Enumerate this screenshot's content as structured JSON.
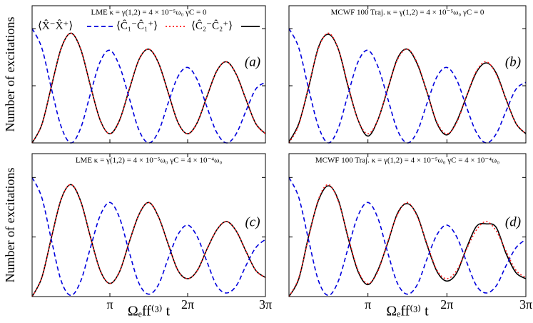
{
  "chart_data": [
    {
      "type": "line",
      "title": "LME κ = γ(1,2) = 4 × 10⁻⁵ω₀  γC = 0",
      "panel_label": "(a)",
      "ylabel": "Number of excitations",
      "legend": true,
      "x": [
        0,
        0.3927,
        0.7854,
        1.1781,
        1.5708,
        1.9635,
        2.3562,
        2.7489,
        3.1416,
        3.5343,
        3.927,
        4.3197,
        4.7124,
        5.1051,
        5.4978,
        5.8905,
        6.2832,
        6.6759,
        7.0686,
        7.4613,
        7.854,
        8.2467,
        8.6394,
        9.0321,
        9.4248
      ],
      "series": [
        {
          "name": "⟨X̂⁻X̂⁺⟩",
          "color": "#0000dd",
          "style": "dashed",
          "values": [
            1,
            0.83,
            0.47,
            0.14,
            0,
            0.13,
            0.43,
            0.71,
            0.81,
            0.67,
            0.39,
            0.11,
            0,
            0.1,
            0.35,
            0.58,
            0.66,
            0.55,
            0.31,
            0.09,
            0,
            0.08,
            0.28,
            0.47,
            0.53
          ]
        },
        {
          "name": "⟨Ĉ₁⁻Ĉ₁⁺⟩",
          "color": "#ff1a1a",
          "style": "dotted",
          "values": [
            0,
            0.16,
            0.5,
            0.83,
            0.96,
            0.82,
            0.5,
            0.2,
            0.08,
            0.2,
            0.47,
            0.73,
            0.82,
            0.7,
            0.44,
            0.18,
            0.08,
            0.18,
            0.41,
            0.63,
            0.71,
            0.6,
            0.38,
            0.17,
            0.08
          ]
        },
        {
          "name": "⟨Ĉ₂⁻Ĉ₂⁺⟩",
          "color": "#000000",
          "style": "solid",
          "values": [
            0,
            0.16,
            0.5,
            0.83,
            0.96,
            0.82,
            0.5,
            0.2,
            0.08,
            0.2,
            0.47,
            0.73,
            0.82,
            0.7,
            0.44,
            0.18,
            0.08,
            0.18,
            0.41,
            0.63,
            0.71,
            0.6,
            0.38,
            0.17,
            0.08
          ]
        }
      ],
      "xlim": [
        0,
        9.4248
      ],
      "ylim": [
        0,
        1.2
      ],
      "xticks": [
        3.1416,
        6.2832,
        9.4248
      ],
      "yticks": [
        0.5,
        1
      ]
    },
    {
      "type": "line",
      "title": "MCWF 100 Traj.   κ = γ(1,2) = 4 × 10⁻⁵ω₀  γC = 0",
      "panel_label": "(b)",
      "x": [
        0,
        0.3927,
        0.7854,
        1.1781,
        1.5708,
        1.9635,
        2.3562,
        2.7489,
        3.1416,
        3.5343,
        3.927,
        4.3197,
        4.7124,
        5.1051,
        5.4978,
        5.8905,
        6.2832,
        6.6759,
        7.0686,
        7.4613,
        7.854,
        8.2467,
        8.6394,
        9.0321,
        9.4248
      ],
      "series": [
        {
          "color": "#0000dd",
          "style": "dashed",
          "values": [
            1,
            0.83,
            0.47,
            0.14,
            0,
            0.13,
            0.43,
            0.71,
            0.81,
            0.67,
            0.39,
            0.11,
            0,
            0.1,
            0.35,
            0.58,
            0.66,
            0.55,
            0.31,
            0.09,
            0,
            0.08,
            0.28,
            0.47,
            0.53
          ]
        },
        {
          "color": "#ff1a1a",
          "style": "dotted",
          "values": [
            0,
            0.16,
            0.5,
            0.83,
            0.96,
            0.82,
            0.5,
            0.2,
            0.08,
            0.2,
            0.47,
            0.73,
            0.82,
            0.7,
            0.44,
            0.18,
            0.08,
            0.18,
            0.41,
            0.63,
            0.71,
            0.6,
            0.38,
            0.17,
            0.08
          ]
        },
        {
          "color": "#000000",
          "style": "solid",
          "values": [
            0.01,
            0.17,
            0.49,
            0.84,
            0.95,
            0.82,
            0.49,
            0.2,
            0.06,
            0.2,
            0.47,
            0.74,
            0.82,
            0.69,
            0.44,
            0.17,
            0.07,
            0.19,
            0.41,
            0.62,
            0.7,
            0.61,
            0.38,
            0.17,
            0.08
          ]
        }
      ],
      "xlim": [
        0,
        9.4248
      ],
      "ylim": [
        0,
        1.2
      ],
      "xticks": [
        3.1416,
        6.2832,
        9.4248
      ],
      "yticks": [
        0.5,
        1
      ]
    },
    {
      "type": "line",
      "title": "LME κ = γ(1,2) = 4 × 10⁻⁵ω₀  γC = 4 × 10⁻⁴ω₀",
      "panel_label": "(c)",
      "ylabel": "Number of excitations",
      "xlabel": "Ωₑff⁽³⁾ t",
      "x": [
        0,
        0.3927,
        0.7854,
        1.1781,
        1.5708,
        1.9635,
        2.3562,
        2.7489,
        3.1416,
        3.5343,
        3.927,
        4.3197,
        4.7124,
        5.1051,
        5.4978,
        5.8905,
        6.2832,
        6.6759,
        7.0686,
        7.4613,
        7.854,
        8.2467,
        8.6394,
        9.0321,
        9.4248
      ],
      "series": [
        {
          "color": "#0000dd",
          "style": "dashed",
          "values": [
            1,
            0.83,
            0.47,
            0.13,
            0.01,
            0.13,
            0.41,
            0.68,
            0.79,
            0.66,
            0.37,
            0.11,
            0.02,
            0.1,
            0.32,
            0.52,
            0.6,
            0.5,
            0.29,
            0.09,
            0.03,
            0.09,
            0.26,
            0.41,
            0.48
          ]
        },
        {
          "color": "#ff1a1a",
          "style": "dotted",
          "values": [
            0,
            0.16,
            0.5,
            0.82,
            0.94,
            0.8,
            0.5,
            0.22,
            0.11,
            0.21,
            0.46,
            0.69,
            0.79,
            0.67,
            0.44,
            0.22,
            0.15,
            0.22,
            0.4,
            0.56,
            0.63,
            0.55,
            0.38,
            0.22,
            0.16
          ]
        },
        {
          "color": "#000000",
          "style": "solid",
          "values": [
            0,
            0.16,
            0.5,
            0.82,
            0.94,
            0.8,
            0.5,
            0.22,
            0.11,
            0.21,
            0.46,
            0.69,
            0.79,
            0.67,
            0.44,
            0.22,
            0.15,
            0.22,
            0.4,
            0.56,
            0.63,
            0.55,
            0.38,
            0.22,
            0.16
          ]
        }
      ],
      "xlim": [
        0,
        9.4248
      ],
      "ylim": [
        0,
        1.2
      ],
      "xticks": [
        {
          "value": 3.1416,
          "label": "π"
        },
        {
          "value": 6.2832,
          "label": "2π"
        },
        {
          "value": 9.4248,
          "label": "3π"
        }
      ],
      "yticks": [
        0.5,
        1
      ]
    },
    {
      "type": "line",
      "title": "MCWF 100 Traj.   κ = γ(1,2) = 4 × 10⁻⁵ω₀  γC = 4 × 10⁻⁴ω₀",
      "panel_label": "(d)",
      "xlabel": "Ωₑff⁽³⁾ t",
      "x": [
        0,
        0.3927,
        0.7854,
        1.1781,
        1.5708,
        1.9635,
        2.3562,
        2.7489,
        3.1416,
        3.5343,
        3.927,
        4.3197,
        4.7124,
        5.1051,
        5.4978,
        5.8905,
        6.2832,
        6.6759,
        7.0686,
        7.4613,
        7.854,
        8.2467,
        8.6394,
        9.0321,
        9.4248
      ],
      "series": [
        {
          "color": "#0000dd",
          "style": "dashed",
          "values": [
            1,
            0.83,
            0.47,
            0.13,
            0.01,
            0.13,
            0.41,
            0.68,
            0.79,
            0.66,
            0.37,
            0.11,
            0.02,
            0.1,
            0.32,
            0.52,
            0.6,
            0.5,
            0.29,
            0.09,
            0.03,
            0.09,
            0.26,
            0.41,
            0.48
          ]
        },
        {
          "color": "#ff1a1a",
          "style": "dotted",
          "values": [
            0,
            0.16,
            0.5,
            0.82,
            0.94,
            0.8,
            0.5,
            0.22,
            0.11,
            0.21,
            0.46,
            0.69,
            0.79,
            0.67,
            0.44,
            0.22,
            0.15,
            0.22,
            0.4,
            0.56,
            0.63,
            0.55,
            0.38,
            0.22,
            0.16
          ]
        },
        {
          "color": "#000000",
          "style": "solid",
          "values": [
            0,
            0.15,
            0.51,
            0.81,
            0.93,
            0.81,
            0.49,
            0.21,
            0.1,
            0.22,
            0.45,
            0.7,
            0.78,
            0.68,
            0.43,
            0.21,
            0.13,
            0.2,
            0.41,
            0.59,
            0.61,
            0.58,
            0.36,
            0.2,
            0.15
          ]
        }
      ],
      "xlim": [
        0,
        9.4248
      ],
      "ylim": [
        0,
        1.2
      ],
      "xticks": [
        {
          "value": 3.1416,
          "label": "π"
        },
        {
          "value": 6.2832,
          "label": "2π"
        },
        {
          "value": 9.4248,
          "label": "3π"
        }
      ],
      "yticks": [
        0.5,
        1
      ]
    }
  ]
}
